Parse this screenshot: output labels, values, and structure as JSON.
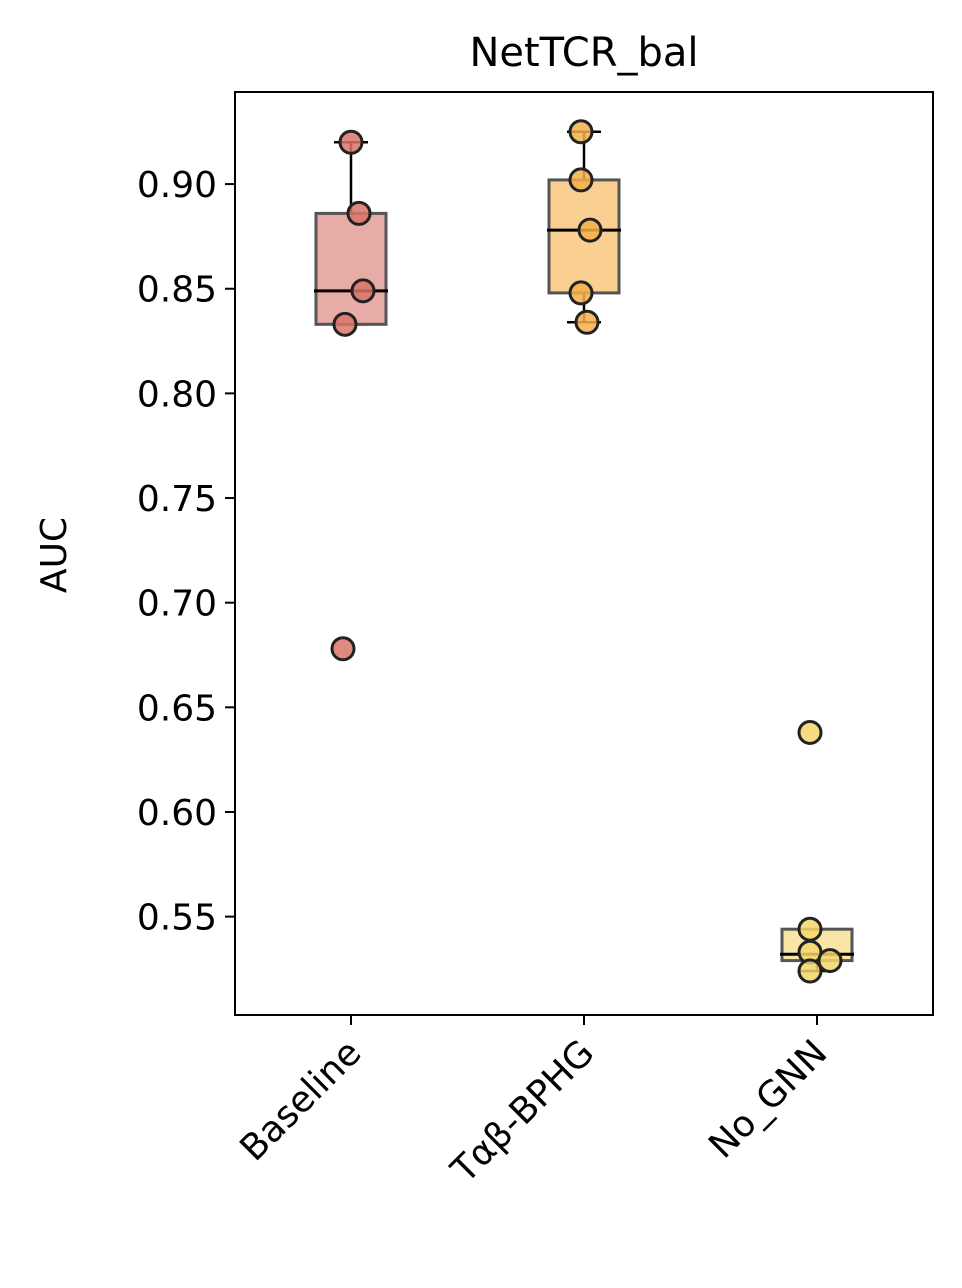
{
  "chart_data": {
    "type": "box",
    "title": "NetTCR_bal",
    "xlabel": "",
    "ylabel": "AUC",
    "ylim": [
      0.503,
      0.944
    ],
    "yticks": [
      "0.55",
      "0.60",
      "0.65",
      "0.70",
      "0.75",
      "0.80",
      "0.85",
      "0.90"
    ],
    "categories": [
      "Baseline",
      "Tαβ-BPHG",
      "No_GNN"
    ],
    "colors": {
      "Baseline": "#d9746a",
      "Tαβ-BPHG": "#f5b04a",
      "No_GNN": "#f5d66a"
    },
    "boxes": [
      {
        "category": "Baseline",
        "q1": 0.833,
        "median": 0.849,
        "q3": 0.886,
        "whisker_low": 0.833,
        "whisker_high": 0.92,
        "outliers": [
          0.678
        ]
      },
      {
        "category": "Tαβ-BPHG",
        "q1": 0.848,
        "median": 0.878,
        "q3": 0.902,
        "whisker_low": 0.834,
        "whisker_high": 0.925,
        "outliers": []
      },
      {
        "category": "No_GNN",
        "q1": 0.529,
        "median": 0.532,
        "q3": 0.544,
        "whisker_low": 0.524,
        "whisker_high": 0.544,
        "outliers": [
          0.638
        ]
      }
    ],
    "points": [
      {
        "category": "Baseline",
        "values": [
          0.92,
          0.886,
          0.849,
          0.833,
          0.678
        ]
      },
      {
        "category": "Tαβ-BPHG",
        "values": [
          0.925,
          0.902,
          0.878,
          0.848,
          0.834
        ]
      },
      {
        "category": "No_GNN",
        "values": [
          0.638,
          0.544,
          0.533,
          0.529,
          0.524
        ]
      }
    ]
  }
}
